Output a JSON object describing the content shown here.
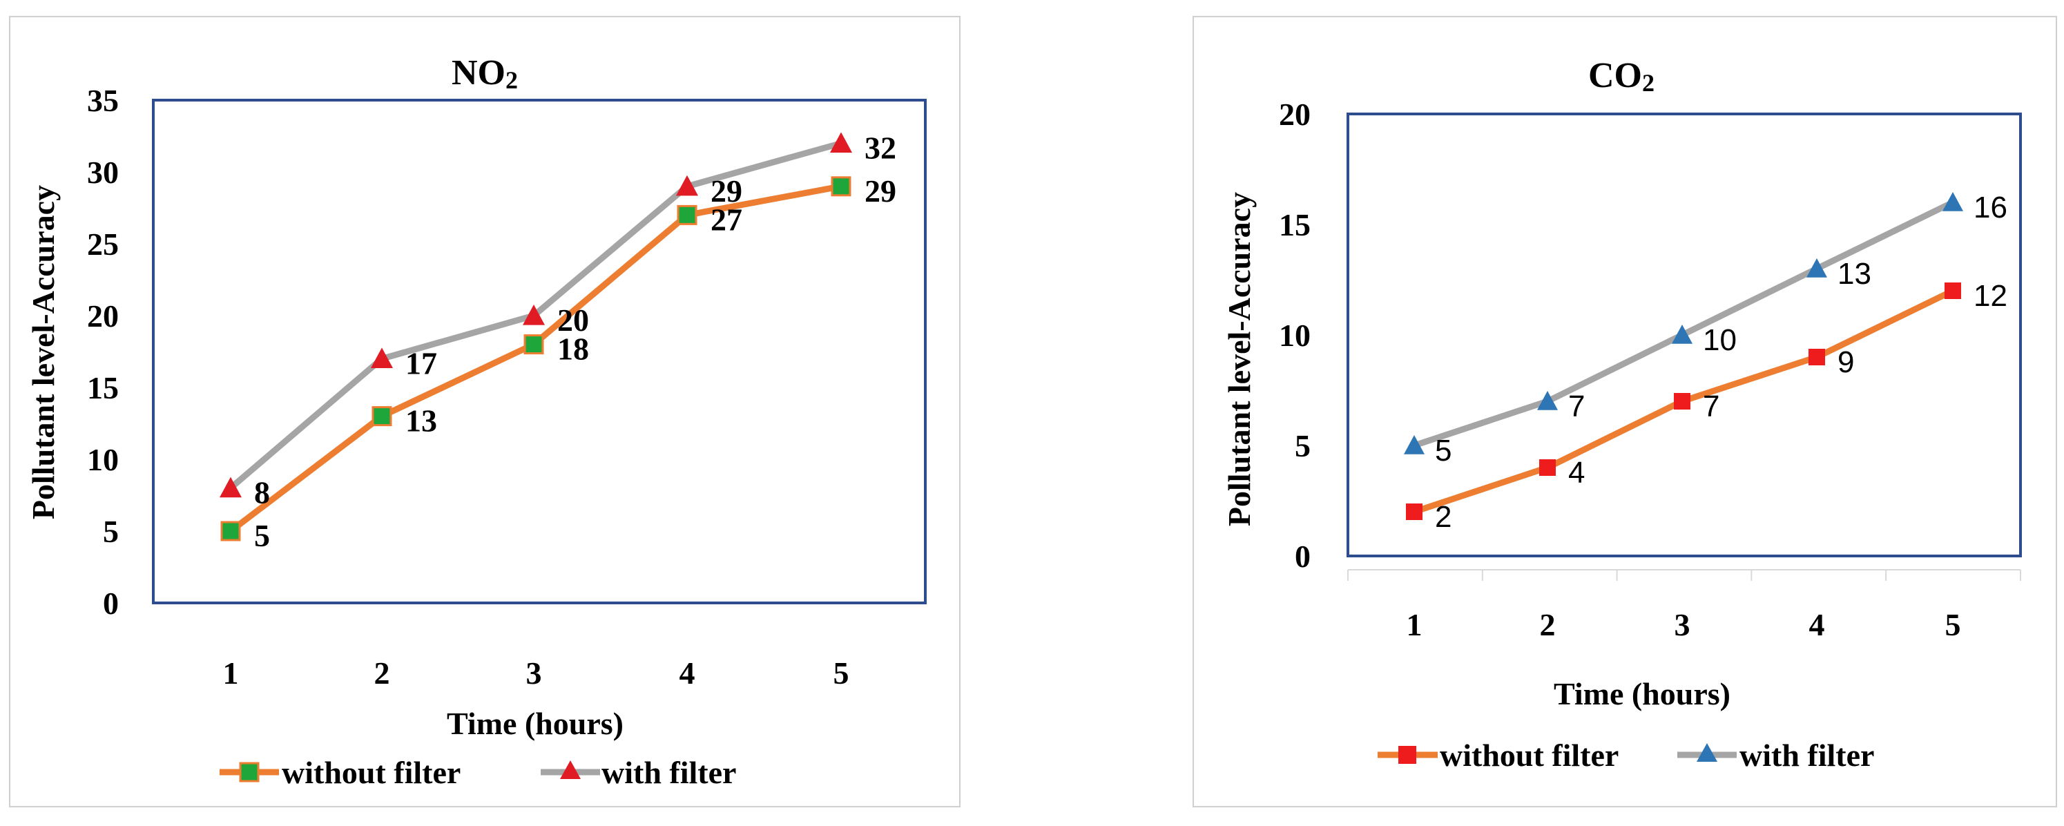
{
  "chart_data": [
    {
      "type": "line",
      "id": "no2",
      "title_main": "NO",
      "title_sub": "2",
      "xlabel": "Time (hours)",
      "ylabel": "Pollutant level-Accuracy",
      "categories": [
        "1",
        "2",
        "3",
        "4",
        "5"
      ],
      "ylim": [
        0,
        35
      ],
      "yticks": [
        0,
        5,
        10,
        15,
        20,
        25,
        30,
        35
      ],
      "grid": false,
      "legend_position": "bottom",
      "series": [
        {
          "name": "without filter",
          "values": [
            5,
            13,
            18,
            27,
            29
          ],
          "line_color": "#ed7d31",
          "marker": "square",
          "marker_color": "#1fa63a",
          "labels": [
            "5",
            "13",
            "18",
            "27",
            "29"
          ]
        },
        {
          "name": "with filter",
          "values": [
            8,
            17,
            20,
            29,
            32
          ],
          "line_color": "#a5a5a5",
          "marker": "triangle",
          "marker_color": "#e01b24",
          "labels": [
            "8",
            "17",
            "20",
            "29",
            "32"
          ]
        }
      ],
      "frame_color": "#2e4d8f"
    },
    {
      "type": "line",
      "id": "co2",
      "title_main": "CO",
      "title_sub": "2",
      "xlabel": "Time (hours)",
      "ylabel": "Pollutant level-Accuracy",
      "categories": [
        "1",
        "2",
        "3",
        "4",
        "5"
      ],
      "ylim": [
        0,
        20
      ],
      "yticks": [
        0,
        5,
        10,
        15,
        20
      ],
      "grid": false,
      "legend_position": "bottom",
      "series": [
        {
          "name": "without filter",
          "values": [
            2,
            4,
            7,
            9,
            12
          ],
          "line_color": "#ed7d31",
          "marker": "square",
          "marker_color": "#ee1c1c",
          "labels": [
            "2",
            "4",
            "7",
            "9",
            "12"
          ]
        },
        {
          "name": "with filter",
          "values": [
            5,
            7,
            10,
            13,
            16
          ],
          "line_color": "#a5a5a5",
          "marker": "triangle",
          "marker_color": "#2e75b6",
          "labels": [
            "5",
            "7",
            "10",
            "13",
            "16"
          ]
        }
      ],
      "frame_color": "#2e4d8f"
    }
  ]
}
